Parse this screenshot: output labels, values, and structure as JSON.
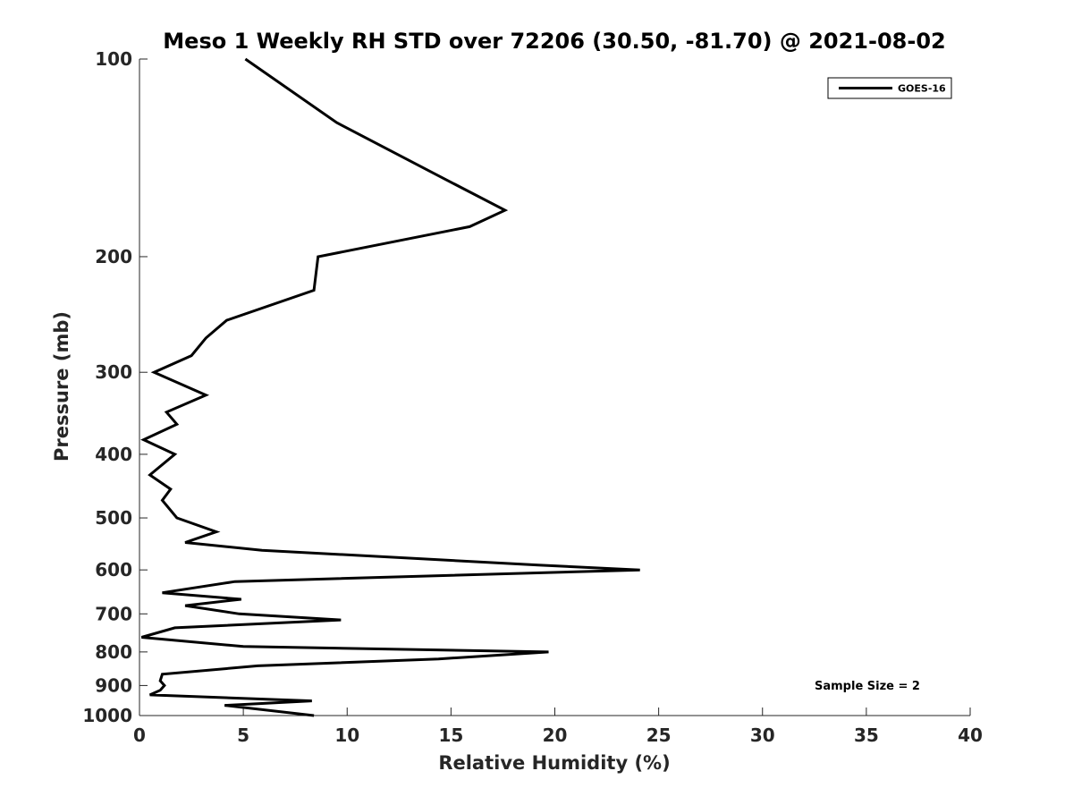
{
  "chart_data": {
    "type": "line",
    "title": "Meso 1 Weekly RH STD over 72206 (30.50, -81.70) @ 2021-08-02",
    "xlabel": "Relative Humidity (%)",
    "ylabel": "Pressure (mb)",
    "xlim": [
      0,
      40
    ],
    "ylim": [
      1000,
      100
    ],
    "y_scale": "log",
    "y_reversed": true,
    "grid": false,
    "legend_position": "top-right",
    "x_ticks": [
      "0",
      "5",
      "10",
      "15",
      "20",
      "25",
      "30",
      "35",
      "40"
    ],
    "y_ticks": [
      "100",
      "200",
      "300",
      "400",
      "500",
      "600",
      "700",
      "800",
      "900",
      "1000"
    ],
    "series": [
      {
        "name": "GOES-16",
        "color": "#000000",
        "points": [
          [
            5.1,
            100
          ],
          [
            9.5,
            125
          ],
          [
            14.3,
            150
          ],
          [
            17.6,
            170
          ],
          [
            15.9,
            180
          ],
          [
            8.6,
            200
          ],
          [
            8.4,
            225
          ],
          [
            4.2,
            250
          ],
          [
            3.2,
            266
          ],
          [
            2.5,
            283
          ],
          [
            0.7,
            300
          ],
          [
            3.2,
            325
          ],
          [
            1.3,
            345
          ],
          [
            1.8,
            360
          ],
          [
            0.2,
            380
          ],
          [
            1.7,
            400
          ],
          [
            0.5,
            430
          ],
          [
            1.5,
            452
          ],
          [
            1.1,
            470
          ],
          [
            1.8,
            500
          ],
          [
            3.7,
            525
          ],
          [
            2.2,
            545
          ],
          [
            5.9,
            560
          ],
          [
            19.2,
            590
          ],
          [
            24.1,
            600
          ],
          [
            4.6,
            625
          ],
          [
            1.1,
            650
          ],
          [
            4.9,
            665
          ],
          [
            2.2,
            680
          ],
          [
            4.8,
            700
          ],
          [
            9.7,
            715
          ],
          [
            1.7,
            735
          ],
          [
            0.1,
            760
          ],
          [
            5.0,
            785
          ],
          [
            19.7,
            800
          ],
          [
            14.4,
            820
          ],
          [
            5.7,
            840
          ],
          [
            1.1,
            865
          ],
          [
            1.0,
            885
          ],
          [
            1.2,
            900
          ],
          [
            1.0,
            915
          ],
          [
            0.5,
            930
          ],
          [
            8.3,
            950
          ],
          [
            4.1,
            965
          ],
          [
            8.4,
            1000
          ]
        ]
      }
    ],
    "annotations": [
      "Sample Size = 2"
    ]
  }
}
